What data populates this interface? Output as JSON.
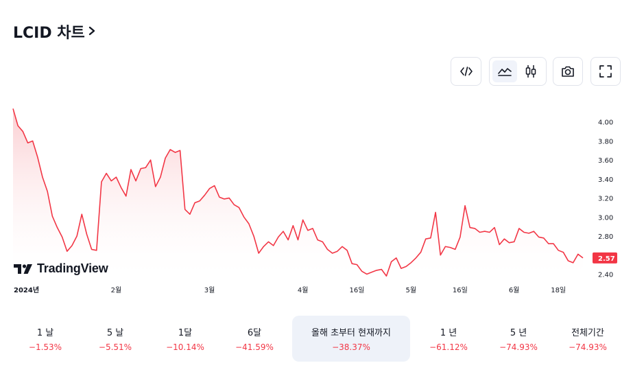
{
  "header": {
    "title": "LCID 차트",
    "chevron": "chevron-right-icon"
  },
  "toolbar": {
    "buttons": [
      {
        "name": "embed-code-button",
        "icon": "code-icon"
      },
      {
        "name": "area-chart-button",
        "icon": "area-chart-icon",
        "active": true
      },
      {
        "name": "candlestick-button",
        "icon": "candlestick-icon"
      },
      {
        "name": "screenshot-button",
        "icon": "camera-icon"
      },
      {
        "name": "fullscreen-button",
        "icon": "fullscreen-icon"
      }
    ]
  },
  "watermark": {
    "text": "TradingView"
  },
  "colors": {
    "line": "#f23645",
    "fill_top": "#f7a5ab",
    "fill_bottom": "#ffffff",
    "badge": "#f23645",
    "active_period_bg": "#eef2f9"
  },
  "chart_data": {
    "type": "area",
    "ylim": [
      2.36,
      4.2
    ],
    "y_ticks": [
      "4.00",
      "3.80",
      "3.60",
      "3.40",
      "3.20",
      "3.00",
      "2.80",
      "2.60",
      "2.40"
    ],
    "x_ticks": [
      {
        "label": "2024년",
        "idx": 0,
        "bold": true
      },
      {
        "label": "2월",
        "idx": 21,
        "bold": false
      },
      {
        "label": "3월",
        "idx": 40,
        "bold": false
      },
      {
        "label": "4월",
        "idx": 59,
        "bold": false
      },
      {
        "label": "16일",
        "idx": 70,
        "bold": false
      },
      {
        "label": "5월",
        "idx": 81,
        "bold": false
      },
      {
        "label": "16일",
        "idx": 91,
        "bold": false
      },
      {
        "label": "6월",
        "idx": 102,
        "bold": false
      },
      {
        "label": "18일",
        "idx": 111,
        "bold": false
      }
    ],
    "last_value_label": "2.57",
    "values": [
      4.14,
      3.96,
      3.9,
      3.78,
      3.8,
      3.63,
      3.42,
      3.27,
      3.01,
      2.89,
      2.79,
      2.64,
      2.7,
      2.8,
      3.03,
      2.82,
      2.66,
      2.65,
      3.37,
      3.46,
      3.38,
      3.42,
      3.31,
      3.22,
      3.5,
      3.38,
      3.51,
      3.52,
      3.6,
      3.32,
      3.42,
      3.62,
      3.71,
      3.68,
      3.7,
      3.08,
      3.03,
      3.15,
      3.17,
      3.23,
      3.3,
      3.33,
      3.21,
      3.19,
      3.2,
      3.13,
      3.1,
      3.0,
      2.93,
      2.8,
      2.62,
      2.69,
      2.74,
      2.7,
      2.79,
      2.85,
      2.76,
      2.91,
      2.76,
      2.97,
      2.86,
      2.88,
      2.76,
      2.74,
      2.66,
      2.62,
      2.64,
      2.69,
      2.65,
      2.51,
      2.5,
      2.43,
      2.4,
      2.42,
      2.44,
      2.45,
      2.38,
      2.53,
      2.57,
      2.46,
      2.48,
      2.52,
      2.57,
      2.63,
      2.77,
      2.78,
      3.05,
      2.6,
      2.69,
      2.68,
      2.66,
      2.79,
      3.12,
      2.89,
      2.88,
      2.84,
      2.85,
      2.84,
      2.89,
      2.71,
      2.77,
      2.73,
      2.74,
      2.88,
      2.84,
      2.83,
      2.85,
      2.79,
      2.78,
      2.72,
      2.72,
      2.65,
      2.63,
      2.54,
      2.52,
      2.61,
      2.57
    ]
  },
  "periods": [
    {
      "label": "1 날",
      "change": "−1.53%"
    },
    {
      "label": "5 날",
      "change": "−5.51%"
    },
    {
      "label": "1달",
      "change": "−10.14%"
    },
    {
      "label": "6달",
      "change": "−41.59%"
    },
    {
      "label": "올해 초부터 현재까지",
      "change": "−38.37%",
      "active": true
    },
    {
      "label": "1 년",
      "change": "−61.12%"
    },
    {
      "label": "5 년",
      "change": "−74.93%"
    },
    {
      "label": "전체기간",
      "change": "−74.93%"
    }
  ]
}
